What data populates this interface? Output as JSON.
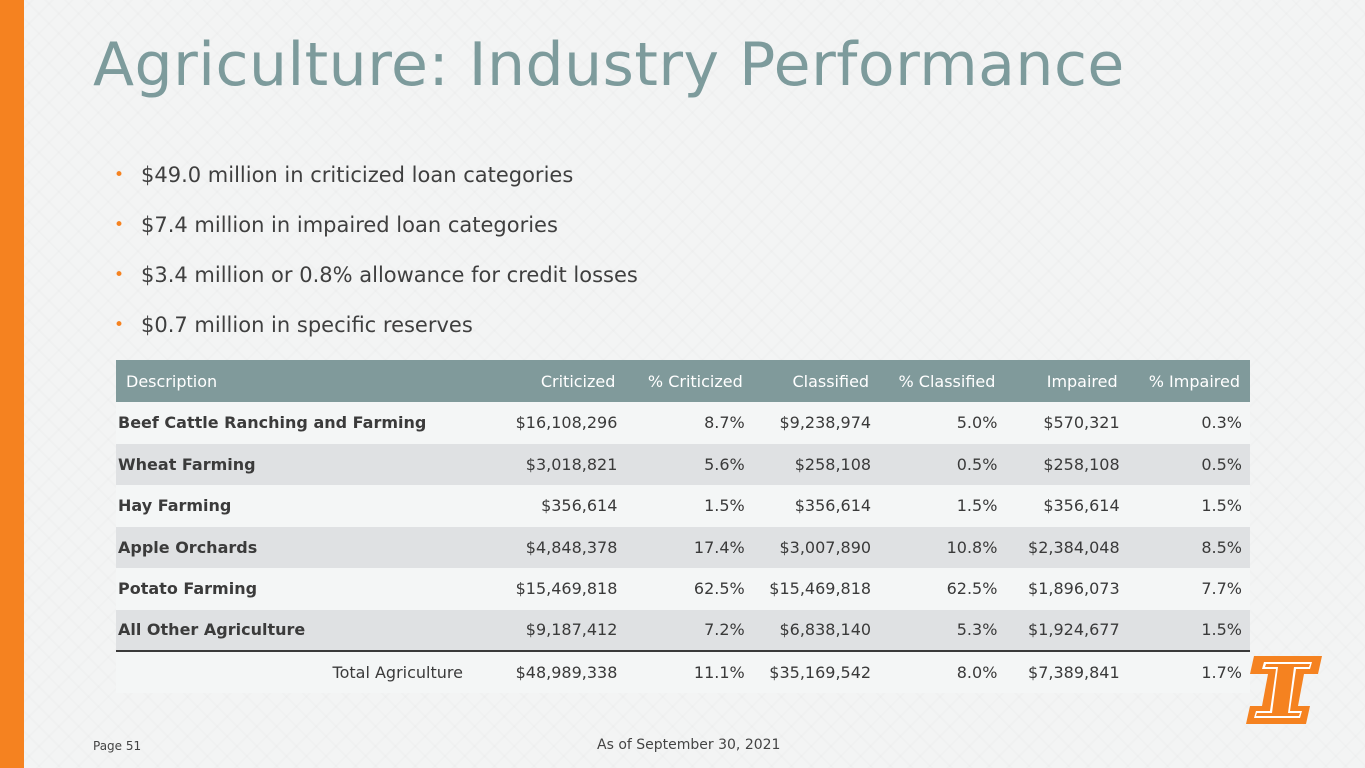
{
  "title": "Agriculture: Industry Performance",
  "bullets": [
    "$49.0 million in criticized loan categories",
    "$7.4 million in impaired loan categories",
    "$3.4 million or 0.8% allowance for credit losses",
    "$0.7 million in specific reserves"
  ],
  "table": {
    "headers": [
      "Description",
      "Criticized",
      "% Criticized",
      "Classified",
      "% Classified",
      "Impaired",
      "% Impaired"
    ],
    "rows": [
      [
        "Beef Cattle Ranching and Farming",
        "$16,108,296",
        "8.7%",
        "$9,238,974",
        "5.0%",
        "$570,321",
        "0.3%"
      ],
      [
        "Wheat Farming",
        "$3,018,821",
        "5.6%",
        "$258,108",
        "0.5%",
        "$258,108",
        "0.5%"
      ],
      [
        "Hay Farming",
        "$356,614",
        "1.5%",
        "$356,614",
        "1.5%",
        "$356,614",
        "1.5%"
      ],
      [
        "Apple Orchards",
        "$4,848,378",
        "17.4%",
        "$3,007,890",
        "10.8%",
        "$2,384,048",
        "8.5%"
      ],
      [
        "Potato Farming",
        "$15,469,818",
        "62.5%",
        "$15,469,818",
        "62.5%",
        "$1,896,073",
        "7.7%"
      ],
      [
        "All Other Agriculture",
        "$9,187,412",
        "7.2%",
        "$6,838,140",
        "5.3%",
        "$1,924,677",
        "1.5%"
      ]
    ],
    "total": [
      "Total Agriculture",
      "$48,989,338",
      "11.1%",
      "$35,169,542",
      "8.0%",
      "$7,389,841",
      "1.7%"
    ]
  },
  "footer": {
    "page": "Page 51",
    "as_of": "As of September 30, 2021"
  },
  "colors": {
    "accent": "#f58220",
    "title": "#7d9b9c",
    "header_bg": "#809a9b"
  }
}
